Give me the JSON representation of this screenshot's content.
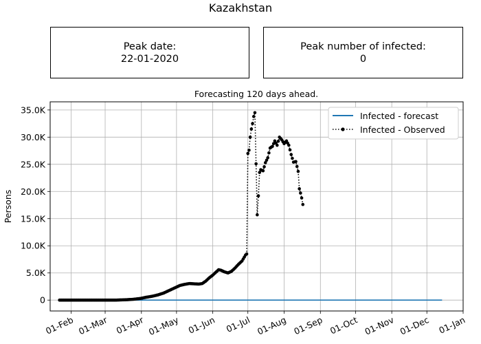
{
  "page": {
    "title": "Kazakhstan",
    "peak_date_label": "Peak date:",
    "peak_date_value": "22-01-2020",
    "peak_number_label": "Peak number of infected:",
    "peak_number_value": "0"
  },
  "chart_data": {
    "type": "line",
    "title": "Forecasting 120 days ahead.",
    "xlabel": "",
    "ylabel": "Persons",
    "x_range": [
      "2020-01-14",
      "2021-01-01"
    ],
    "ylim": [
      -2000,
      36500
    ],
    "grid": true,
    "legend_placement": "top-right",
    "x_ticks": [
      "01-Feb",
      "01-Mar",
      "01-Apr",
      "01-May",
      "01-Jun",
      "01-Jul",
      "01-Aug",
      "01-Sep",
      "01-Oct",
      "01-Nov",
      "01-Dec",
      "01-Jan"
    ],
    "y_ticks": [
      {
        "value": 0,
        "label": "0"
      },
      {
        "value": 5000,
        "label": "5.0K"
      },
      {
        "value": 10000,
        "label": "10.0K"
      },
      {
        "value": 15000,
        "label": "15.0K"
      },
      {
        "value": 20000,
        "label": "20.0K"
      },
      {
        "value": 25000,
        "label": "25.0K"
      },
      {
        "value": 30000,
        "label": "30.0K"
      },
      {
        "value": 35000,
        "label": "35.0K"
      }
    ],
    "series": [
      {
        "name": "Infected - forecast",
        "color": "#1f77b4",
        "style": "solid",
        "points": [
          [
            "2020-01-22",
            0
          ],
          [
            "2020-12-14",
            0
          ]
        ]
      },
      {
        "name": "Infected - Observed",
        "color": "#000000",
        "style": "dotted-markers",
        "points": [
          [
            "2020-01-22",
            0
          ],
          [
            "2020-02-01",
            0
          ],
          [
            "2020-02-15",
            0
          ],
          [
            "2020-03-01",
            0
          ],
          [
            "2020-03-10",
            0
          ],
          [
            "2020-03-20",
            80
          ],
          [
            "2020-03-25",
            150
          ],
          [
            "2020-03-31",
            300
          ],
          [
            "2020-04-05",
            520
          ],
          [
            "2020-04-10",
            700
          ],
          [
            "2020-04-15",
            950
          ],
          [
            "2020-04-20",
            1300
          ],
          [
            "2020-04-25",
            1800
          ],
          [
            "2020-04-30",
            2300
          ],
          [
            "2020-05-04",
            2700
          ],
          [
            "2020-05-08",
            2900
          ],
          [
            "2020-05-12",
            3050
          ],
          [
            "2020-05-16",
            3000
          ],
          [
            "2020-05-20",
            2950
          ],
          [
            "2020-05-23",
            3050
          ],
          [
            "2020-05-26",
            3500
          ],
          [
            "2020-05-29",
            4100
          ],
          [
            "2020-06-01",
            4600
          ],
          [
            "2020-06-04",
            5200
          ],
          [
            "2020-06-06",
            5600
          ],
          [
            "2020-06-08",
            5500
          ],
          [
            "2020-06-11",
            5200
          ],
          [
            "2020-06-14",
            5000
          ],
          [
            "2020-06-17",
            5300
          ],
          [
            "2020-06-20",
            5900
          ],
          [
            "2020-06-23",
            6600
          ],
          [
            "2020-06-26",
            7200
          ],
          [
            "2020-06-29",
            8300
          ],
          [
            "2020-06-30",
            8500
          ],
          [
            "2020-07-01",
            27000
          ],
          [
            "2020-07-02",
            27600
          ],
          [
            "2020-07-03",
            30000
          ],
          [
            "2020-07-04",
            31500
          ],
          [
            "2020-07-05",
            32500
          ],
          [
            "2020-07-06",
            33800
          ],
          [
            "2020-07-07",
            34500
          ],
          [
            "2020-07-09",
            15700
          ],
          [
            "2020-07-10",
            19200
          ],
          [
            "2020-07-11",
            23500
          ],
          [
            "2020-07-12",
            24000
          ],
          [
            "2020-07-14",
            23800
          ],
          [
            "2020-07-16",
            25300
          ],
          [
            "2020-07-18",
            26200
          ],
          [
            "2020-07-20",
            28000
          ],
          [
            "2020-07-22",
            28300
          ],
          [
            "2020-07-24",
            29300
          ],
          [
            "2020-07-26",
            28500
          ],
          [
            "2020-07-28",
            30000
          ],
          [
            "2020-07-30",
            29500
          ],
          [
            "2020-08-01",
            28800
          ],
          [
            "2020-08-03",
            29300
          ],
          [
            "2020-08-05",
            28500
          ],
          [
            "2020-08-07",
            26800
          ],
          [
            "2020-08-09",
            25400
          ],
          [
            "2020-08-11",
            25500
          ],
          [
            "2020-08-13",
            23700
          ],
          [
            "2020-08-14",
            20500
          ],
          [
            "2020-08-15",
            19700
          ],
          [
            "2020-08-16",
            18800
          ],
          [
            "2020-08-17",
            17600
          ]
        ]
      }
    ]
  }
}
